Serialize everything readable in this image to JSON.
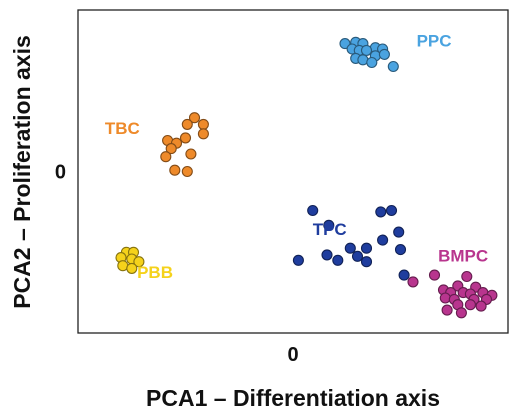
{
  "chart_data": {
    "type": "scatter",
    "xlabel": "PCA1 – Differentiation axis",
    "ylabel": "PCA2 – Proliferation axis",
    "xlim": [
      -6,
      6
    ],
    "ylim": [
      -6,
      6
    ],
    "x_ticks": [
      {
        "value": 0,
        "label": "0"
      }
    ],
    "y_ticks": [
      {
        "value": 0,
        "label": "0"
      }
    ],
    "grid": false,
    "legend": "none",
    "series": [
      {
        "name": "PPC",
        "color": "#4aa3e0",
        "points": [
          [
            1.45,
            4.75
          ],
          [
            1.75,
            4.8
          ],
          [
            1.95,
            4.75
          ],
          [
            2.3,
            4.6
          ],
          [
            2.5,
            4.55
          ],
          [
            1.65,
            4.55
          ],
          [
            1.85,
            4.5
          ],
          [
            2.05,
            4.5
          ],
          [
            2.3,
            4.3
          ],
          [
            2.55,
            4.35
          ],
          [
            1.75,
            4.2
          ],
          [
            1.95,
            4.15
          ],
          [
            2.2,
            4.05
          ],
          [
            2.8,
            3.9
          ]
        ]
      },
      {
        "name": "TBC",
        "color": "#ee8a2a",
        "points": [
          [
            -2.75,
            2.0
          ],
          [
            -2.5,
            1.75
          ],
          [
            -2.95,
            1.75
          ],
          [
            -2.5,
            1.4
          ],
          [
            -3.0,
            1.25
          ],
          [
            -3.5,
            1.15
          ],
          [
            -3.25,
            1.05
          ],
          [
            -3.4,
            0.85
          ],
          [
            -2.85,
            0.65
          ],
          [
            -3.55,
            0.55
          ],
          [
            -3.3,
            0.05
          ],
          [
            -2.95,
            0.0
          ]
        ]
      },
      {
        "name": "TPC",
        "color": "#1f3d9e",
        "points": [
          [
            0.55,
            -1.45
          ],
          [
            2.45,
            -1.5
          ],
          [
            2.75,
            -1.45
          ],
          [
            1.0,
            -2.0
          ],
          [
            2.95,
            -2.25
          ],
          [
            2.5,
            -2.55
          ],
          [
            1.6,
            -2.85
          ],
          [
            2.05,
            -2.85
          ],
          [
            3.0,
            -2.9
          ],
          [
            0.95,
            -3.1
          ],
          [
            1.8,
            -3.15
          ],
          [
            1.25,
            -3.3
          ],
          [
            0.15,
            -3.3
          ],
          [
            2.05,
            -3.35
          ],
          [
            3.1,
            -3.85
          ]
        ]
      },
      {
        "name": "BMPC",
        "color": "#b8358e",
        "points": [
          [
            3.95,
            -3.85
          ],
          [
            4.85,
            -3.9
          ],
          [
            3.35,
            -4.1
          ],
          [
            4.6,
            -4.25
          ],
          [
            5.1,
            -4.3
          ],
          [
            4.2,
            -4.4
          ],
          [
            4.4,
            -4.5
          ],
          [
            4.75,
            -4.5
          ],
          [
            4.95,
            -4.55
          ],
          [
            5.3,
            -4.5
          ],
          [
            5.55,
            -4.6
          ],
          [
            4.25,
            -4.7
          ],
          [
            4.5,
            -4.75
          ],
          [
            5.05,
            -4.75
          ],
          [
            5.4,
            -4.75
          ],
          [
            4.6,
            -4.95
          ],
          [
            4.95,
            -4.95
          ],
          [
            5.25,
            -5.0
          ],
          [
            4.3,
            -5.15
          ],
          [
            4.7,
            -5.25
          ]
        ]
      },
      {
        "name": "PBB",
        "color": "#f5d21b",
        "points": [
          [
            -4.65,
            -3.0
          ],
          [
            -4.45,
            -3.0
          ],
          [
            -4.8,
            -3.2
          ],
          [
            -4.5,
            -3.25
          ],
          [
            -4.3,
            -3.35
          ],
          [
            -4.75,
            -3.5
          ],
          [
            -4.5,
            -3.6
          ]
        ]
      }
    ],
    "annotations": [
      {
        "text": "PPC",
        "series": "PPC",
        "x": 3.45,
        "y": 4.65
      },
      {
        "text": "TBC",
        "series": "TBC",
        "x": -5.25,
        "y": 1.4
      },
      {
        "text": "TPC",
        "series": "TPC",
        "x": 0.55,
        "y": -2.35
      },
      {
        "text": "BMPC",
        "series": "BMPC",
        "x": 4.05,
        "y": -3.35
      },
      {
        "text": "PBB",
        "series": "PBB",
        "x": -4.35,
        "y": -3.95
      }
    ]
  }
}
